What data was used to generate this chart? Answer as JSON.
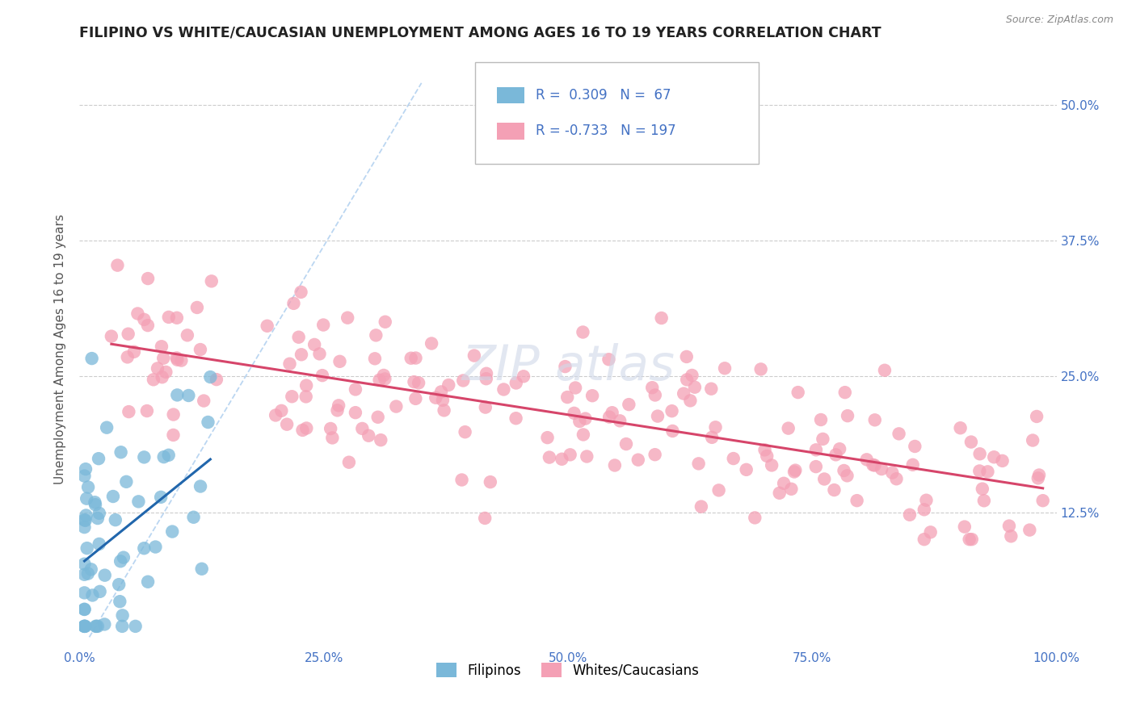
{
  "title": "FILIPINO VS WHITE/CAUCASIAN UNEMPLOYMENT AMONG AGES 16 TO 19 YEARS CORRELATION CHART",
  "source": "Source: ZipAtlas.com",
  "ylabel": "Unemployment Among Ages 16 to 19 years",
  "xlim": [
    0,
    1.0
  ],
  "ylim": [
    0,
    0.55
  ],
  "xtick_vals": [
    0.0,
    0.25,
    0.5,
    0.75,
    1.0
  ],
  "xtick_labels": [
    "0.0%",
    "25.0%",
    "50.0%",
    "75.0%",
    "100.0%"
  ],
  "ytick_vals": [
    0.125,
    0.25,
    0.375,
    0.5
  ],
  "ytick_labels": [
    "12.5%",
    "25.0%",
    "37.5%",
    "50.0%"
  ],
  "filipino_color": "#7ab8d9",
  "white_color": "#f4a0b5",
  "filipino_trend_color": "#2166ac",
  "white_trend_color": "#d6456a",
  "diag_color": "#7ab8d9",
  "legend_blue_label": "Filipinos",
  "legend_pink_label": "Whites/Caucasians",
  "background_color": "#ffffff",
  "grid_color": "#cccccc",
  "tick_color": "#4472c4",
  "title_fontsize": 12.5,
  "axis_label_fontsize": 11,
  "tick_fontsize": 11,
  "source_fontsize": 9,
  "watermark_text": "ZIPatlas",
  "filipino_R": 0.309,
  "filipino_N": 67,
  "white_R": -0.733,
  "white_N": 197,
  "seed_fil": 99,
  "seed_whi": 55
}
